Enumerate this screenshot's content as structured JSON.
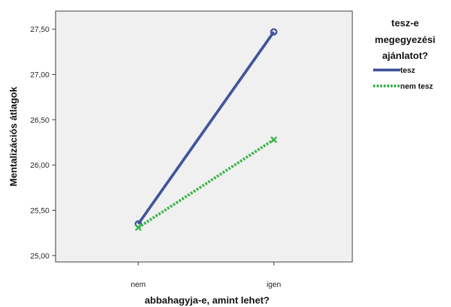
{
  "chart_data": {
    "type": "line",
    "x": [
      "nem",
      "igen"
    ],
    "xlabel": "abbahagyja-e, amint lehet?",
    "ylabel": "Mentalizációs átlagok",
    "ylim": [
      24.93,
      27.7
    ],
    "yticks": [
      25.0,
      25.5,
      26.0,
      26.5,
      27.0,
      27.5
    ],
    "ytick_labels": [
      "25,00",
      "25,50",
      "26,00",
      "26,50",
      "27,00",
      "27,50"
    ],
    "grid": false,
    "legend": {
      "title_lines": [
        "tesz-e",
        "megegyezési",
        "ajánlatot?"
      ],
      "placement": "right"
    },
    "series": [
      {
        "name": "tesz",
        "values": [
          25.35,
          27.47
        ],
        "color": "#41559c",
        "style": "solid",
        "marker": "circle"
      },
      {
        "name": "nem tesz",
        "values": [
          25.31,
          26.28
        ],
        "color": "#3cb44b",
        "style": "dotted",
        "marker": "cross"
      }
    ],
    "plot_background": "#f0f0f0"
  }
}
